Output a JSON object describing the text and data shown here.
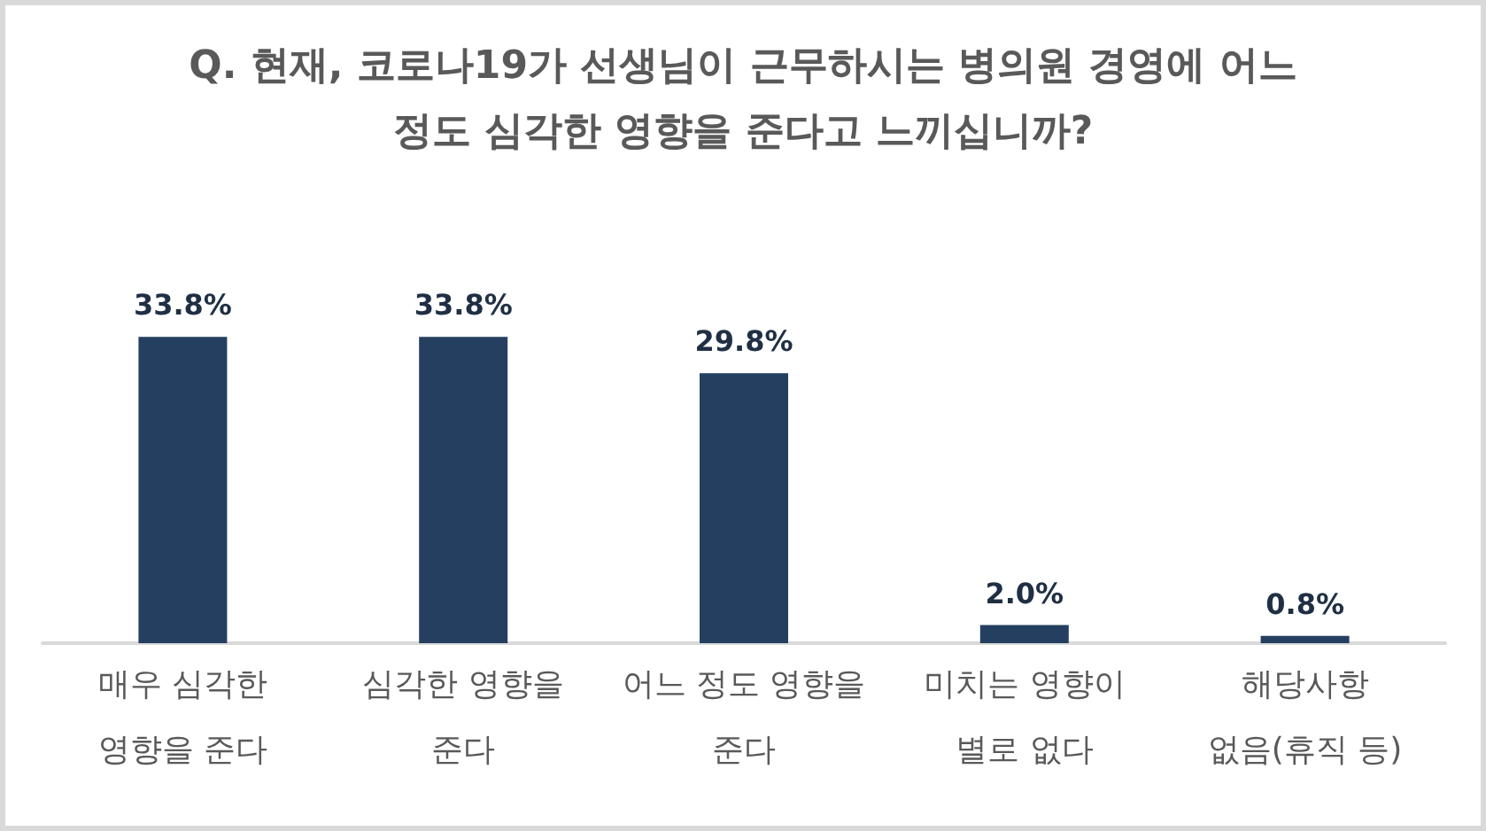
{
  "chart_data": {
    "type": "bar",
    "title": "Q. 현재, 코로나19가 선생님이 근무하시는 병의원 경영에 어느\n정도 심각한 영향을 준다고 느끼십니까?",
    "categories": [
      "매우 심각한\n영향을 준다",
      "심각한 영향을\n준다",
      "어느 정도 영향을\n준다",
      "미치는 영향이\n별로 없다",
      "해당사항\n없음(휴직 등)"
    ],
    "values": [
      33.8,
      33.8,
      29.8,
      2.0,
      0.8
    ],
    "color": "#243f60",
    "value_labels": [
      "33.8%",
      "33.8%",
      "29.8%",
      "2.0%",
      "0.8%"
    ],
    "tick_labels": "x"
  }
}
